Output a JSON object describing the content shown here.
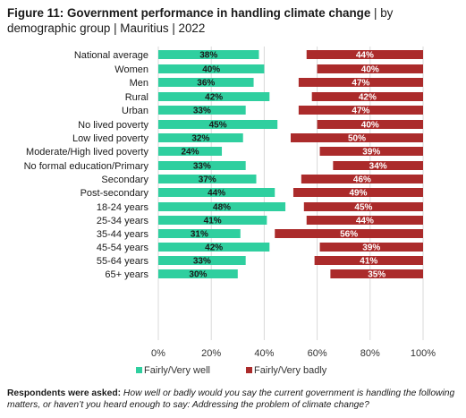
{
  "header": {
    "title_bold": "Figure 11: Government performance in handling climate change",
    "title_rest": " | by demographic group | Mauritius | 2022"
  },
  "colors": {
    "well": "#2fcf9f",
    "badly": "#ab2b2b"
  },
  "chart_data": {
    "type": "bar",
    "orientation": "horizontal",
    "x_ticks": [
      "0%",
      "20%",
      "40%",
      "60%",
      "80%",
      "100%"
    ],
    "xlim": [
      0,
      100
    ],
    "legend_position": "bottom",
    "groups": [
      [
        "National average"
      ],
      [
        "Women",
        "Men"
      ],
      [
        "Rural",
        "Urban"
      ],
      [
        "No lived poverty",
        "Low lived poverty",
        "Moderate/High lived poverty"
      ],
      [
        "No formal education/Primary",
        "Secondary",
        "Post-secondary"
      ],
      [
        "18-24 years",
        "25-34 years",
        "35-44 years",
        "45-54 years",
        "55-64 years",
        "65+ years"
      ]
    ],
    "categories": [
      "National average",
      "Women",
      "Men",
      "Rural",
      "Urban",
      "No lived poverty",
      "Low lived poverty",
      "Moderate/High lived poverty",
      "No formal education/Primary",
      "Secondary",
      "Post-secondary",
      "18-24 years",
      "25-34 years",
      "35-44 years",
      "45-54 years",
      "55-64 years",
      "65+ years"
    ],
    "series": [
      {
        "name": "Fairly/Very well",
        "color": "#2fcf9f",
        "anchor": "left",
        "values": [
          38,
          40,
          36,
          42,
          33,
          45,
          32,
          24,
          33,
          37,
          44,
          48,
          41,
          31,
          42,
          33,
          30
        ]
      },
      {
        "name": "Fairly/Very badly",
        "color": "#ab2b2b",
        "anchor": "right",
        "values": [
          44,
          40,
          47,
          42,
          47,
          40,
          50,
          39,
          34,
          46,
          49,
          45,
          44,
          56,
          39,
          41,
          35
        ]
      }
    ]
  },
  "footnote": {
    "lead": "Respondents were asked:",
    "text": " How well or badly would you say the current government is handling the following matters, or haven’t you heard enough to say: Addressing the problem of climate change?"
  }
}
